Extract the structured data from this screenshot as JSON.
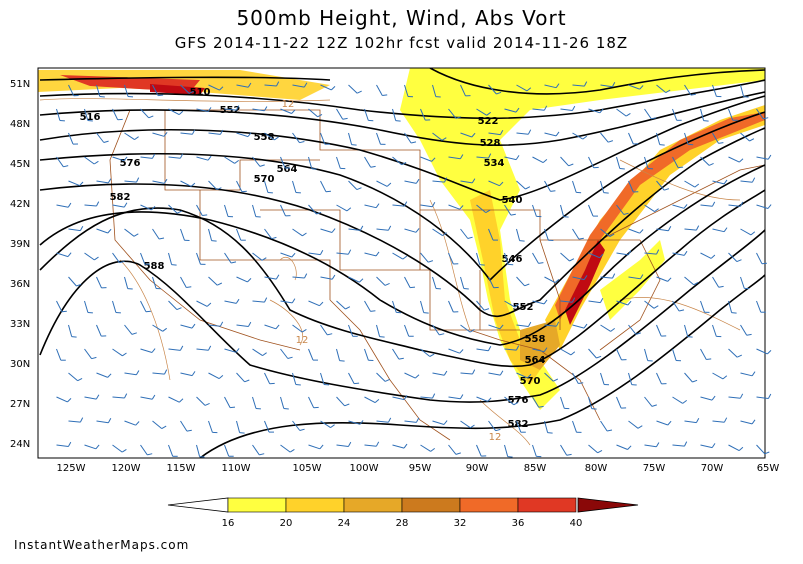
{
  "header": {
    "title": "500mb Height, Wind, Abs Vort",
    "subtitle": "GFS 2014-11-22 12Z 102hr fcst valid 2014-11-26 18Z"
  },
  "axes": {
    "lat_labels": [
      "51N",
      "48N",
      "45N",
      "42N",
      "39N",
      "36N",
      "33N",
      "30N",
      "27N",
      "24N"
    ],
    "lon_labels": [
      "125W",
      "120W",
      "115W",
      "110W",
      "105W",
      "100W",
      "95W",
      "90W",
      "85W",
      "80W",
      "75W",
      "70W",
      "65W"
    ]
  },
  "contours": {
    "height_labels": [
      "510",
      "516",
      "522",
      "528",
      "534",
      "540",
      "546",
      "552",
      "558",
      "564",
      "570",
      "576",
      "582",
      "588",
      "552",
      "558",
      "564",
      "570",
      "576",
      "582"
    ],
    "vort_label": "12"
  },
  "colorbar": {
    "labels": [
      "16",
      "20",
      "24",
      "28",
      "32",
      "36",
      "40"
    ],
    "colors": [
      "#ffff40",
      "#ffd22a",
      "#e6a828",
      "#cc7a1e",
      "#f06a28",
      "#e03824",
      "#c00a12",
      "#8a0808"
    ]
  },
  "colors": {
    "height_contour": "#000000",
    "wind_barb": "#2f6fb7",
    "borders": "#a0521e",
    "vort_contour": "#c8864a"
  },
  "footer": {
    "credit": "InstantWeatherMaps.com"
  }
}
